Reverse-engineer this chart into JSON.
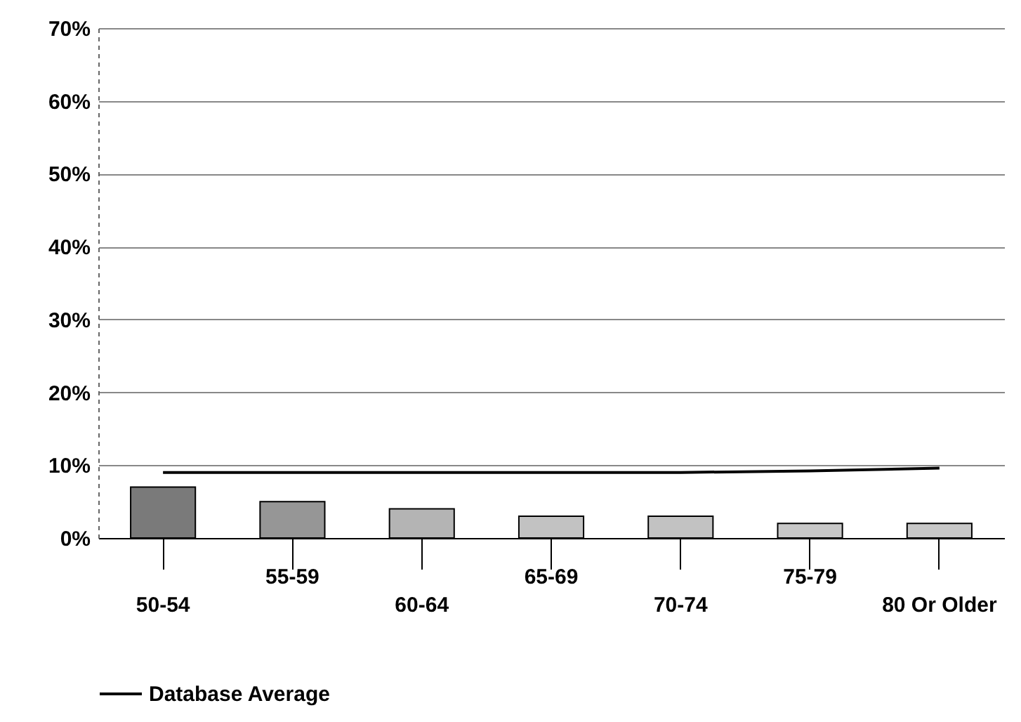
{
  "chart_data": {
    "type": "bar",
    "categories": [
      "50-54",
      "55-59",
      "60-64",
      "65-69",
      "70-74",
      "75-79",
      "80 Or Older"
    ],
    "series": [
      {
        "colors": [
          "#7a7a7a",
          "#969696",
          "#b4b4b4",
          "#c2c2c2",
          "#c2c2c2",
          "#c8c8c8",
          "#c8c8c8"
        ],
        "values": [
          7,
          5,
          4,
          3,
          3,
          2,
          2
        ]
      },
      {
        "type": "line",
        "name": "Database Average",
        "color": "#000000",
        "values": [
          9,
          9,
          9,
          9,
          9,
          9.2,
          9.6
        ]
      }
    ],
    "ylim": [
      0,
      70
    ],
    "yticks": [
      {
        "value": 0,
        "label": "0%"
      },
      {
        "value": 10,
        "label": "10%"
      },
      {
        "value": 20,
        "label": "20%"
      },
      {
        "value": 30,
        "label": "30%"
      },
      {
        "value": 40,
        "label": "40%"
      },
      {
        "value": 50,
        "label": "50%"
      },
      {
        "value": 60,
        "label": "60%"
      },
      {
        "value": 70,
        "label": "70%"
      }
    ],
    "grid": "y",
    "legend": "bottom"
  }
}
